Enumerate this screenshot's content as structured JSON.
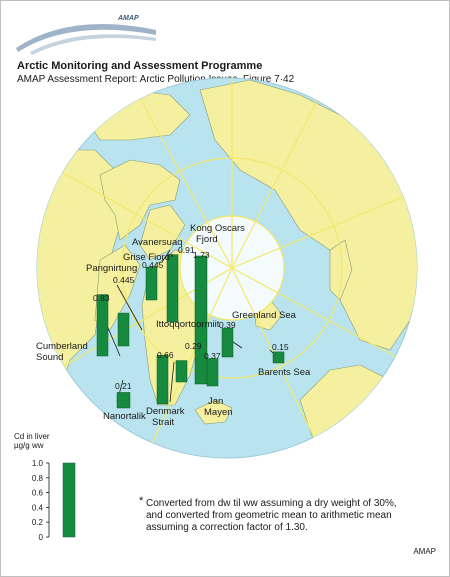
{
  "header": {
    "title": "Arctic Monitoring and Assessment Programme",
    "subtitle": "AMAP Assessment Report: Arctic Pollution Issues, Figure 7·42"
  },
  "logo": {
    "text": "AMAP",
    "small_text": "Arctic Monitoring and Assessment Programme"
  },
  "legend": {
    "title_line1": "Cd in liver",
    "title_line2": "µg/g ww",
    "ticks": [
      {
        "label": "1.0",
        "value": 1.0
      },
      {
        "label": "0.8",
        "value": 0.8
      },
      {
        "label": "0.6",
        "value": 0.6
      },
      {
        "label": "0.4",
        "value": 0.4
      },
      {
        "label": "0.2",
        "value": 0.2
      },
      {
        "label": "0",
        "value": 0
      }
    ],
    "example_value": 1.0
  },
  "chart_data": {
    "type": "bar",
    "ylabel": "Cd in liver µg/g ww",
    "ylim": [
      0,
      1.0
    ],
    "sites": [
      {
        "name": "Cumberland Sound",
        "value": 0.83,
        "label": "0.83"
      },
      {
        "name": "Pangnirtung",
        "value": 0.445,
        "label": "0.445"
      },
      {
        "name": "Grise Fiord*",
        "value": 0.445,
        "label": "0.445"
      },
      {
        "name": "Avanersuaq",
        "value": 0.91,
        "label": "0.91"
      },
      {
        "name": "Kong Oscars Fjord",
        "value": 1.73,
        "label": "1.73"
      },
      {
        "name": "Ittoqqortoormiit",
        "value": 0.29,
        "label": "0.29"
      },
      {
        "name": "Denmark Strait",
        "value": 0.66,
        "label": "0.66"
      },
      {
        "name": "Jan Mayen",
        "value": 0.37,
        "label": "0.37"
      },
      {
        "name": "Greenland Sea",
        "value": 0.39,
        "label": "0.39"
      },
      {
        "name": "Barents Sea",
        "value": 0.15,
        "label": "0.15"
      },
      {
        "name": "Nanortalik",
        "value": 0.21,
        "label": "0.21"
      }
    ]
  },
  "labels": {
    "cumberland": "Cumberland",
    "sound": "Sound",
    "pangnirtung": "Pangnirtung",
    "grise": "Grise Fiord*",
    "avanersuaq": "Avanersuaq",
    "kong": "Kong Oscars",
    "fjord": "Fjord",
    "ittoqq": "Ittoqqortoormiit",
    "denmark": "Denmark",
    "strait": "Strait",
    "jan": "Jan",
    "mayen": "Mayen",
    "greenland_sea": "Greenland Sea",
    "barents": "Barents Sea",
    "nanortalik": "Nanortalik"
  },
  "note": {
    "mark": "*",
    "text": "Converted from dw til ww assuming a dry weight of 30%, and converted from geometric mean to arithmetic mean assuming a correction factor of 1.30."
  },
  "credit": "AMAP",
  "colors": {
    "ocean": "#b9e4ef",
    "land": "#f5f0a0",
    "bar": "#168a3e",
    "grid": "#f2e96a",
    "coast": "#8a9b78"
  }
}
